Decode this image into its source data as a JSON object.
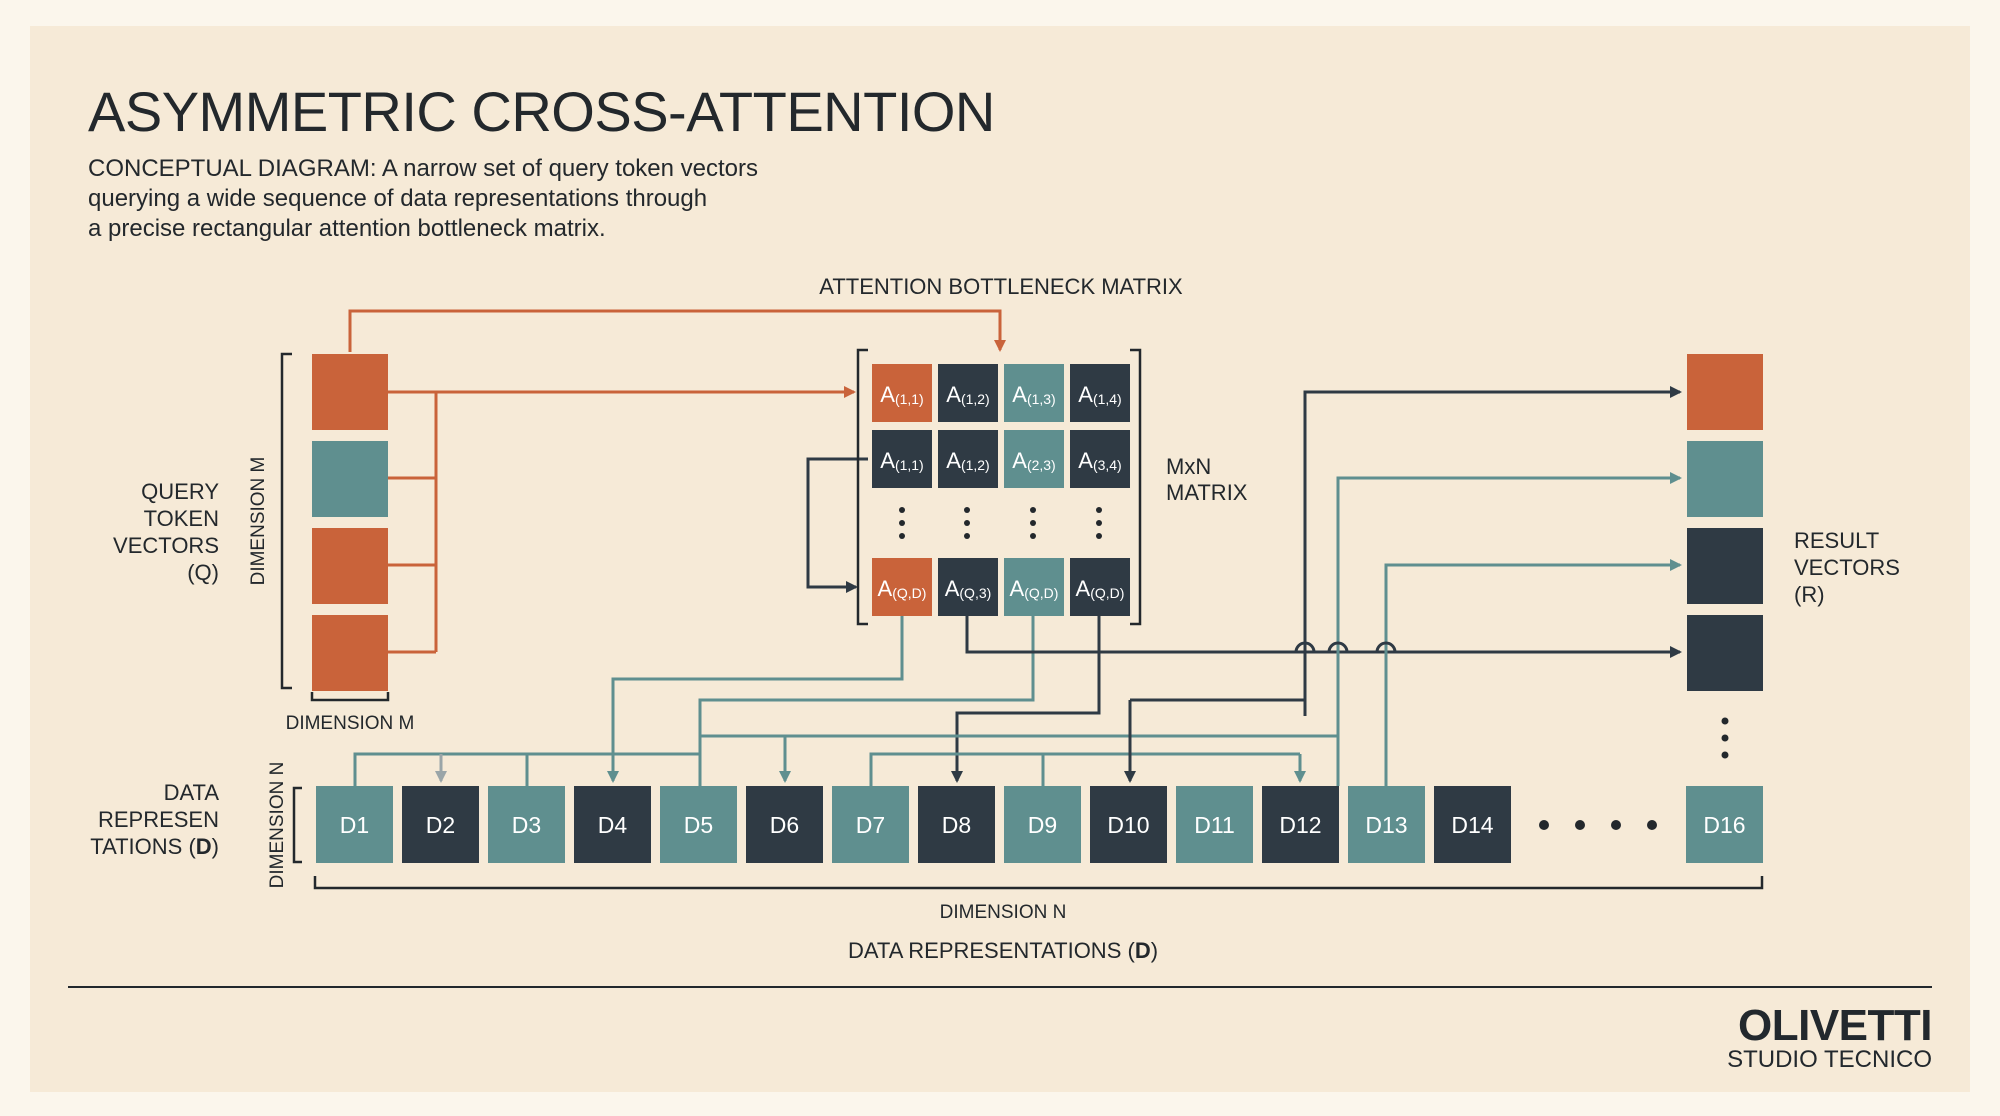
{
  "header": {
    "title": "ASYMMETRIC CROSS-ATTENTION",
    "subtitle": "CONCEPTUAL DIAGRAM: A narrow set of query token vectors\nquerying a wide sequence of data representations through\na precise rectangular attention bottleneck matrix."
  },
  "labels": {
    "matrix_title": "ATTENTION BOTTLENECK MATRIX",
    "matrix_size": [
      "MxN",
      "MATRIX"
    ],
    "query": [
      "QUERY",
      "TOKEN",
      "VECTORS",
      "(Q)"
    ],
    "dimension_m_vertical": "DIMENSION M",
    "dimension_m_horizontal": "DIMENSION M",
    "result": [
      "RESULT",
      "VECTORS",
      "(R)"
    ],
    "data_left": [
      "DATA",
      "REPRESEN",
      "TATIONS (",
      "D",
      ")"
    ],
    "dimension_n_vertical": "DIMENSION N",
    "dimension_n_horizontal": "DIMENSION N",
    "data_bottom": [
      "DATA REPRESENTATIONS (",
      "D",
      ")"
    ]
  },
  "colors": {
    "orange": "#c9633a",
    "teal": "#5f8f8f",
    "navy": "#2f3a44",
    "paper": "#f6ead7",
    "ink": "#23282c"
  },
  "query_vectors": [
    {
      "color": "orange"
    },
    {
      "color": "teal"
    },
    {
      "color": "orange"
    },
    {
      "color": "orange"
    }
  ],
  "matrix": {
    "rows": [
      [
        {
          "base": "A",
          "sub": "(1,1)",
          "color": "orange"
        },
        {
          "base": "A",
          "sub": "(1,2)",
          "color": "navy"
        },
        {
          "base": "A",
          "sub": "(1,3)",
          "color": "teal"
        },
        {
          "base": "A",
          "sub": "(1,4)",
          "color": "navy"
        }
      ],
      [
        {
          "base": "A",
          "sub": "(1,1)",
          "color": "navy"
        },
        {
          "base": "A",
          "sub": "(1,2)",
          "color": "navy"
        },
        {
          "base": "A",
          "sub": "(2,3)",
          "color": "teal"
        },
        {
          "base": "A",
          "sub": "(3,4)",
          "color": "navy"
        }
      ],
      [
        {
          "base": "A",
          "sub": "(Q,D)",
          "color": "orange"
        },
        {
          "base": "A",
          "sub": "(Q,3)",
          "color": "navy"
        },
        {
          "base": "A",
          "sub": "(Q,D)",
          "color": "teal"
        },
        {
          "base": "A",
          "sub": "(Q,D)",
          "color": "navy"
        }
      ]
    ]
  },
  "result_vectors": [
    {
      "color": "orange"
    },
    {
      "color": "teal"
    },
    {
      "color": "navy"
    },
    {
      "color": "navy"
    }
  ],
  "data_tokens": [
    {
      "label": "D1",
      "color": "teal"
    },
    {
      "label": "D2",
      "color": "navy"
    },
    {
      "label": "D3",
      "color": "teal"
    },
    {
      "label": "D4",
      "color": "navy"
    },
    {
      "label": "D5",
      "color": "teal"
    },
    {
      "label": "D6",
      "color": "navy"
    },
    {
      "label": "D7",
      "color": "teal"
    },
    {
      "label": "D8",
      "color": "navy"
    },
    {
      "label": "D9",
      "color": "teal"
    },
    {
      "label": "D10",
      "color": "navy"
    },
    {
      "label": "D11",
      "color": "teal"
    },
    {
      "label": "D12",
      "color": "navy"
    },
    {
      "label": "D13",
      "color": "teal"
    },
    {
      "label": "D14",
      "color": "navy"
    },
    {
      "label": "D16",
      "color": "teal"
    }
  ],
  "footer": {
    "brand": "OLIVETTI",
    "sub": "STUDIO TECNICO"
  }
}
